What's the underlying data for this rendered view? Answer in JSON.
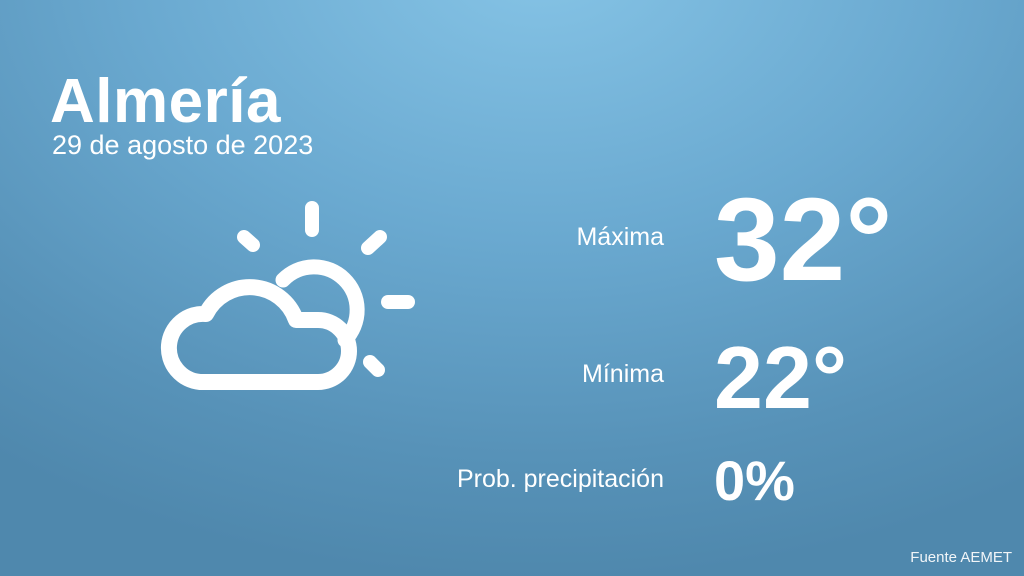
{
  "location": {
    "city": "Almería",
    "date": "29 de agosto de 2023"
  },
  "weather_icon": "partly-cloudy-sun-icon",
  "forecast": {
    "max_label": "Máxima",
    "max_value": "32°",
    "min_label": "Mínima",
    "min_value": "22°",
    "precip_label": "Prob. precipitación",
    "precip_value": "0%"
  },
  "source": "Fuente AEMET",
  "colors": {
    "background_top": "#86c4e6",
    "background_bottom": "#4f88ad",
    "text": "#ffffff"
  }
}
